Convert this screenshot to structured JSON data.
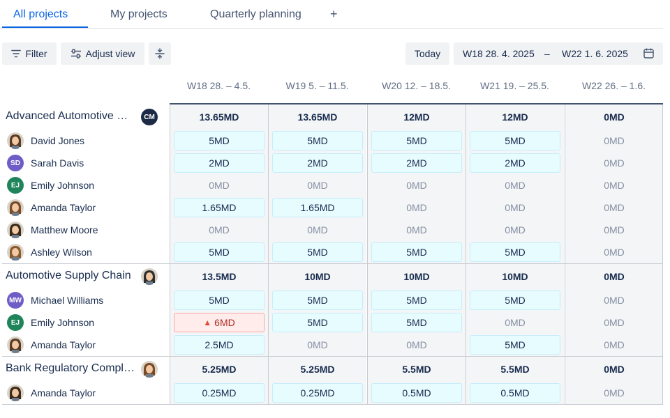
{
  "tabs": [
    {
      "label": "All projects",
      "active": true
    },
    {
      "label": "My projects",
      "active": false
    },
    {
      "label": "Quarterly planning",
      "active": false
    }
  ],
  "tab_add_label": "+",
  "toolbar": {
    "filter_label": "Filter",
    "adjust_view_label": "Adjust view",
    "today_label": "Today",
    "date_from": "W18 28. 4. 2025",
    "date_separator": "–",
    "date_to": "W22 1. 6. 2025"
  },
  "weeks": [
    "W18 28. – 4.5.",
    "W19 5. – 11.5.",
    "W20 12. – 18.5.",
    "W21 19. – 25.5.",
    "W22 26. – 1.6."
  ],
  "colors": {
    "accent": "#0c66e4",
    "allocation_bg": "#e6fcff",
    "overallocation_bg": "#ffeceb",
    "warning": "#e34935"
  },
  "projects": [
    {
      "name": "Advanced Automotive Manufacturing",
      "avatar_initials": "CM",
      "totals": [
        "13.65MD",
        "13.65MD",
        "12MD",
        "12MD",
        "0MD"
      ],
      "people": [
        {
          "name": "David Jones",
          "avatar": "photo",
          "cells": [
            "5MD",
            "5MD",
            "5MD",
            "5MD",
            "0MD"
          ]
        },
        {
          "name": "Sarah Davis",
          "avatar_initials": "SD",
          "cells": [
            "2MD",
            "2MD",
            "2MD",
            "2MD",
            "0MD"
          ]
        },
        {
          "name": "Emily Johnson",
          "avatar_initials": "EJ",
          "cells": [
            "0MD",
            "0MD",
            "0MD",
            "0MD",
            "0MD"
          ]
        },
        {
          "name": "Amanda Taylor",
          "avatar": "photo",
          "cells": [
            "1.65MD",
            "1.65MD",
            "0MD",
            "0MD",
            "0MD"
          ]
        },
        {
          "name": "Matthew Moore",
          "avatar": "photo",
          "cells": [
            "0MD",
            "0MD",
            "0MD",
            "0MD",
            "0MD"
          ]
        },
        {
          "name": "Ashley Wilson",
          "avatar": "photo",
          "cells": [
            "5MD",
            "5MD",
            "5MD",
            "5MD",
            "0MD"
          ]
        }
      ]
    },
    {
      "name": "Automotive Supply Chain",
      "avatar": "photo",
      "totals": [
        "13.5MD",
        "10MD",
        "10MD",
        "10MD",
        "0MD"
      ],
      "people": [
        {
          "name": "Michael Williams",
          "avatar_initials": "MW",
          "cells": [
            "5MD",
            "5MD",
            "5MD",
            "5MD",
            "0MD"
          ]
        },
        {
          "name": "Emily Johnson",
          "avatar_initials": "EJ",
          "cells": [
            "6MD",
            "5MD",
            "5MD",
            "0MD",
            "0MD"
          ]
        },
        {
          "name": "Amanda Taylor",
          "avatar": "photo",
          "cells": [
            "2.5MD",
            "0MD",
            "0MD",
            "5MD",
            "0MD"
          ]
        }
      ]
    },
    {
      "name": "Bank Regulatory Compliance",
      "avatar": "photo",
      "totals": [
        "5.25MD",
        "5.25MD",
        "5.5MD",
        "5.5MD",
        "0MD"
      ],
      "people": [
        {
          "name": "Amanda Taylor",
          "avatar": "photo",
          "cells": [
            "0.25MD",
            "0.25MD",
            "0.5MD",
            "0.5MD",
            "0MD"
          ]
        }
      ]
    }
  ]
}
